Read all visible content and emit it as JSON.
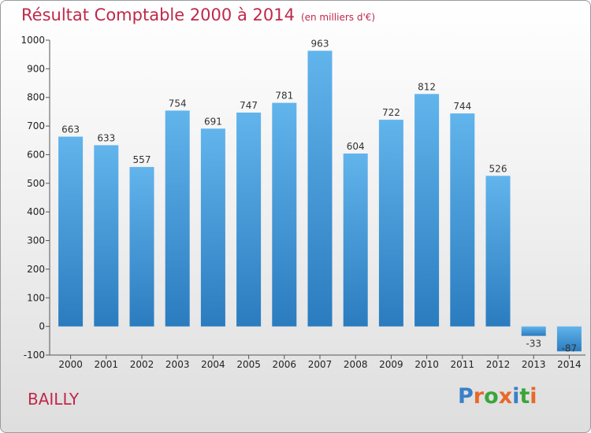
{
  "title": "Résultat Comptable 2000 à 2014",
  "subtitle": "(en milliers d'€)",
  "city": "BAILLY",
  "logo": {
    "text": "Proxiti",
    "letters": [
      "P",
      "r",
      "o",
      "x",
      "i",
      "t",
      "i"
    ],
    "colors": [
      "#3a7fc8",
      "#e8692a",
      "#3aa63a",
      "#e8692a",
      "#3a7fc8",
      "#3aa63a",
      "#e8692a"
    ]
  },
  "colors": {
    "title": "#c0284a",
    "bar_top": "#62b4ec",
    "bar_bottom": "#2a7cbf"
  },
  "chart_data": {
    "type": "bar",
    "title": "Résultat Comptable 2000 à 2014",
    "xlabel": "",
    "ylabel": "",
    "ylim": [
      -100,
      1000
    ],
    "yticks": [
      -100,
      0,
      100,
      200,
      300,
      400,
      500,
      600,
      700,
      800,
      900,
      1000
    ],
    "grid": false,
    "categories": [
      "2000",
      "2001",
      "2002",
      "2003",
      "2004",
      "2005",
      "2006",
      "2007",
      "2008",
      "2009",
      "2010",
      "2011",
      "2012",
      "2013",
      "2014"
    ],
    "values": [
      663,
      633,
      557,
      754,
      691,
      747,
      781,
      963,
      604,
      722,
      812,
      744,
      526,
      -33,
      -87
    ]
  }
}
